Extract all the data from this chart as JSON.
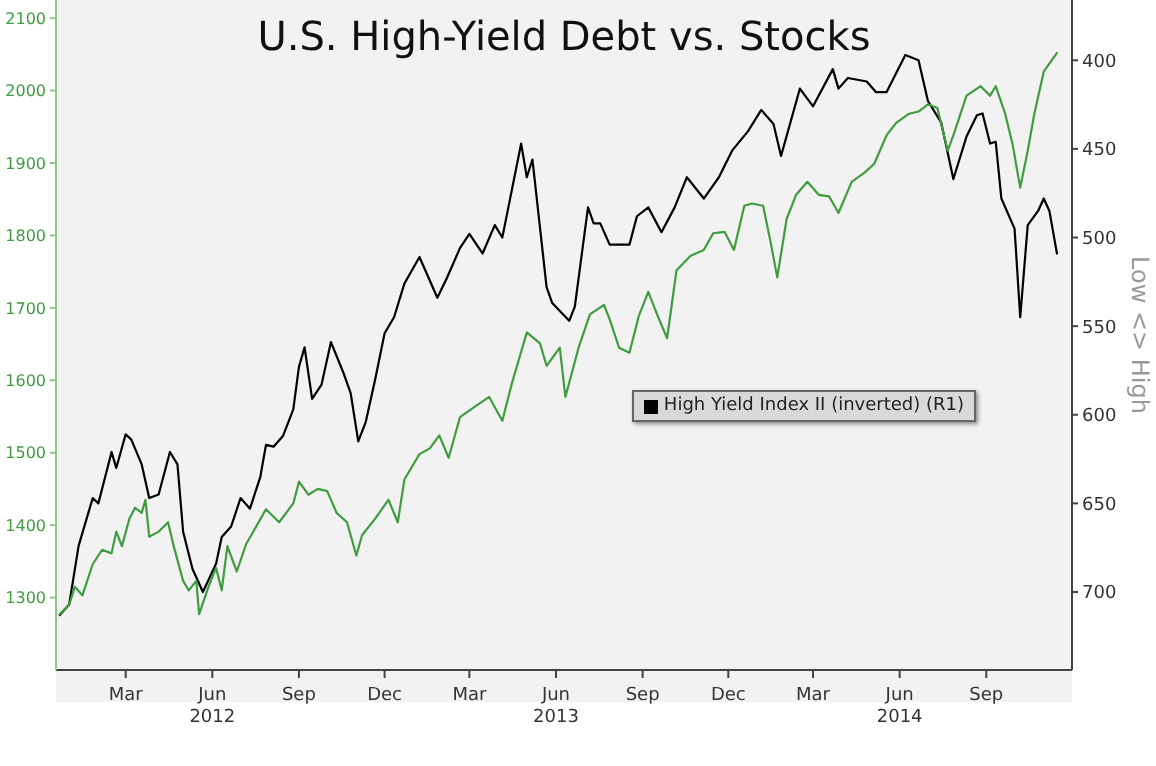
{
  "chart_data": {
    "type": "line",
    "title": "U.S. High-Yield Debt vs. Stocks",
    "y2label": "Low <> High",
    "legend": "right",
    "xlim": [
      "2012-01-01",
      "2014-12-15"
    ],
    "xticks": [
      {
        "value": "2012-03-15",
        "label": "Mar"
      },
      {
        "value": "2012-06-15",
        "label": "Jun\n2012"
      },
      {
        "value": "2012-09-15",
        "label": "Sep"
      },
      {
        "value": "2012-12-15",
        "label": "Dec"
      },
      {
        "value": "2013-03-15",
        "label": "Mar"
      },
      {
        "value": "2013-06-15",
        "label": "Jun\n2013"
      },
      {
        "value": "2013-09-15",
        "label": "Sep"
      },
      {
        "value": "2013-12-15",
        "label": "Dec"
      },
      {
        "value": "2014-03-15",
        "label": "Mar"
      },
      {
        "value": "2014-06-15",
        "label": "Jun\n2014"
      },
      {
        "value": "2014-09-15",
        "label": "Sep"
      }
    ],
    "ylim": [
      1200,
      2125
    ],
    "yticks": [
      1300,
      1400,
      1500,
      1600,
      1700,
      1800,
      1900,
      2000,
      2100
    ],
    "y2lim": [
      744,
      366
    ],
    "y2ticks": [
      400,
      450,
      500,
      550,
      600,
      650,
      700
    ],
    "series": [
      {
        "name": "High Yield Index II (inverted) (R1)",
        "color": "#000000",
        "axis": "y2",
        "x": [
          "2012-01-05",
          "2012-01-15",
          "2012-01-25",
          "2012-02-09",
          "2012-02-15",
          "2012-02-29",
          "2012-03-05",
          "2012-03-15",
          "2012-03-21",
          "2012-04-01",
          "2012-04-09",
          "2012-04-19",
          "2012-05-01",
          "2012-05-09",
          "2012-05-15",
          "2012-05-25",
          "2012-06-05",
          "2012-06-19",
          "2012-06-25",
          "2012-07-05",
          "2012-07-15",
          "2012-07-25",
          "2012-08-05",
          "2012-08-11",
          "2012-08-19",
          "2012-08-29",
          "2012-09-09",
          "2012-09-15",
          "2012-09-21",
          "2012-09-29",
          "2012-10-09",
          "2012-10-19",
          "2012-11-01",
          "2012-11-09",
          "2012-11-17",
          "2012-11-25",
          "2012-12-05",
          "2012-12-15",
          "2012-12-25",
          "2013-01-05",
          "2013-01-21",
          "2013-02-09",
          "2013-02-19",
          "2013-03-05",
          "2013-03-15",
          "2013-03-29",
          "2013-04-11",
          "2013-04-19",
          "2013-05-09",
          "2013-05-15",
          "2013-05-21",
          "2013-06-05",
          "2013-06-11",
          "2013-06-29",
          "2013-07-05",
          "2013-07-19",
          "2013-07-25",
          "2013-08-01",
          "2013-08-11",
          "2013-09-01",
          "2013-09-09",
          "2013-09-21",
          "2013-10-05",
          "2013-10-19",
          "2013-11-01",
          "2013-11-19",
          "2013-12-05",
          "2013-12-19",
          "2014-01-05",
          "2014-01-19",
          "2014-02-01",
          "2014-02-09",
          "2014-03-01",
          "2014-03-15",
          "2014-04-05",
          "2014-04-11",
          "2014-04-21",
          "2014-05-11",
          "2014-05-21",
          "2014-06-01",
          "2014-06-21",
          "2014-07-05",
          "2014-07-15",
          "2014-07-29",
          "2014-08-11",
          "2014-08-25",
          "2014-09-05",
          "2014-09-11",
          "2014-09-19",
          "2014-09-25",
          "2014-10-01",
          "2014-10-15",
          "2014-10-21",
          "2014-10-29",
          "2014-11-09",
          "2014-11-15",
          "2014-11-21",
          "2014-11-29"
        ],
        "values": [
          713,
          707,
          674,
          647,
          650,
          621,
          630,
          611,
          614,
          628,
          647,
          645,
          621,
          628,
          666,
          687,
          700,
          684,
          669,
          663,
          647,
          653,
          635,
          617,
          618,
          612,
          597,
          573,
          562,
          591,
          583,
          559,
          576,
          588,
          615,
          604,
          580,
          554,
          545,
          526,
          511,
          534,
          523,
          506,
          498,
          509,
          493,
          500,
          447,
          466,
          456,
          528,
          537,
          547,
          539,
          483,
          492,
          492,
          504,
          504,
          488,
          483,
          497,
          483,
          466,
          478,
          466,
          451,
          440,
          428,
          436,
          454,
          416,
          426,
          405,
          416,
          410,
          412,
          418,
          418,
          397,
          400,
          423,
          435,
          467,
          443,
          431,
          430,
          447,
          446,
          478,
          495,
          545,
          493,
          485,
          478,
          485,
          509
        ]
      },
      {
        "color": "#3f9c3f",
        "x": [
          "2012-01-05",
          "2012-01-15",
          "2012-01-21",
          "2012-01-29",
          "2012-02-09",
          "2012-02-19",
          "2012-02-29",
          "2012-03-05",
          "2012-03-11",
          "2012-03-19",
          "2012-03-25",
          "2012-04-01",
          "2012-04-05",
          "2012-04-09",
          "2012-04-19",
          "2012-04-29",
          "2012-05-05",
          "2012-05-15",
          "2012-05-21",
          "2012-05-29",
          "2012-06-01",
          "2012-06-11",
          "2012-06-19",
          "2012-06-25",
          "2012-07-01",
          "2012-07-11",
          "2012-07-21",
          "2012-08-01",
          "2012-08-11",
          "2012-08-25",
          "2012-09-09",
          "2012-09-15",
          "2012-09-25",
          "2012-10-05",
          "2012-10-15",
          "2012-10-25",
          "2012-11-05",
          "2012-11-15",
          "2012-11-21",
          "2012-12-05",
          "2012-12-19",
          "2012-12-29",
          "2013-01-05",
          "2013-01-21",
          "2013-02-01",
          "2013-02-11",
          "2013-02-21",
          "2013-03-05",
          "2013-03-19",
          "2013-04-05",
          "2013-04-19",
          "2013-04-29",
          "2013-05-15",
          "2013-05-29",
          "2013-06-05",
          "2013-06-19",
          "2013-06-25",
          "2013-07-09",
          "2013-07-21",
          "2013-08-05",
          "2013-08-11",
          "2013-08-21",
          "2013-09-01",
          "2013-09-11",
          "2013-09-21",
          "2013-10-01",
          "2013-10-11",
          "2013-10-21",
          "2013-11-05",
          "2013-11-19",
          "2013-11-29",
          "2013-12-11",
          "2013-12-21",
          "2014-01-01",
          "2014-01-09",
          "2014-01-21",
          "2014-01-29",
          "2014-02-05",
          "2014-02-15",
          "2014-02-25",
          "2014-03-09",
          "2014-03-21",
          "2014-04-01",
          "2014-04-11",
          "2014-04-25",
          "2014-05-09",
          "2014-05-19",
          "2014-06-01",
          "2014-06-11",
          "2014-06-25",
          "2014-07-05",
          "2014-07-15",
          "2014-07-25",
          "2014-08-05",
          "2014-08-11",
          "2014-08-25",
          "2014-09-09",
          "2014-09-19",
          "2014-09-25",
          "2014-10-05",
          "2014-10-13",
          "2014-10-21",
          "2014-10-29",
          "2014-11-05",
          "2014-11-15",
          "2014-11-29"
        ],
        "values": [
          1277,
          1290,
          1315,
          1303,
          1346,
          1366,
          1361,
          1391,
          1371,
          1409,
          1424,
          1417,
          1435,
          1384,
          1391,
          1404,
          1371,
          1323,
          1310,
          1323,
          1277,
          1315,
          1341,
          1310,
          1371,
          1336,
          1374,
          1399,
          1422,
          1404,
          1430,
          1460,
          1442,
          1450,
          1447,
          1417,
          1404,
          1358,
          1386,
          1409,
          1435,
          1404,
          1463,
          1498,
          1506,
          1524,
          1493,
          1549,
          1562,
          1577,
          1544,
          1595,
          1666,
          1651,
          1620,
          1645,
          1577,
          1645,
          1691,
          1704,
          1684,
          1645,
          1638,
          1689,
          1722,
          1689,
          1658,
          1752,
          1772,
          1780,
          1803,
          1805,
          1780,
          1841,
          1844,
          1841,
          1790,
          1742,
          1823,
          1856,
          1874,
          1856,
          1854,
          1831,
          1874,
          1887,
          1899,
          1938,
          1955,
          1968,
          1971,
          1981,
          1976,
          1917,
          1938,
          1993,
          2006,
          1993,
          2006,
          1968,
          1925,
          1866,
          1917,
          1968,
          2026,
          2052
        ]
      }
    ]
  }
}
